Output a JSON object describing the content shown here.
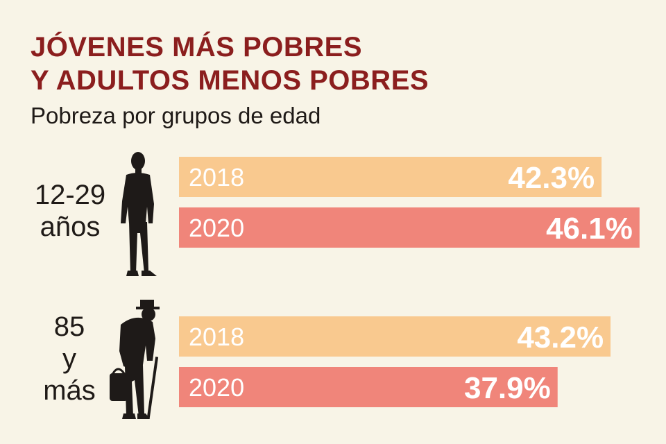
{
  "title_lines": [
    "JÓVENES MÁS POBRES",
    "Y ADULTOS MENOS POBRES"
  ],
  "subtitle": "Pobreza por grupos de edad",
  "colors": {
    "title": "#8b1e1e",
    "bar_2018": "#f9c98f",
    "bar_2020": "#f0857a",
    "text_dark": "#1f1a17"
  },
  "groups": [
    {
      "label_lines": [
        "12-29",
        "años"
      ],
      "icon": "young-person-icon"
    },
    {
      "label_lines": [
        "85",
        "y",
        "más"
      ],
      "icon": "elderly-person-icon"
    }
  ],
  "chart_data": {
    "type": "bar",
    "orientation": "horizontal",
    "title": "JÓVENES MÁS POBRES Y ADULTOS MENOS POBRES",
    "subtitle": "Pobreza por grupos de edad",
    "categories": [
      "12-29 años",
      "85 y más"
    ],
    "series": [
      {
        "name": "2018",
        "values": [
          42.3,
          43.2
        ],
        "labels": [
          "42.3%",
          "43.2%"
        ]
      },
      {
        "name": "2020",
        "values": [
          46.1,
          37.9
        ],
        "labels": [
          "46.1%",
          "37.9%"
        ]
      }
    ]
  }
}
